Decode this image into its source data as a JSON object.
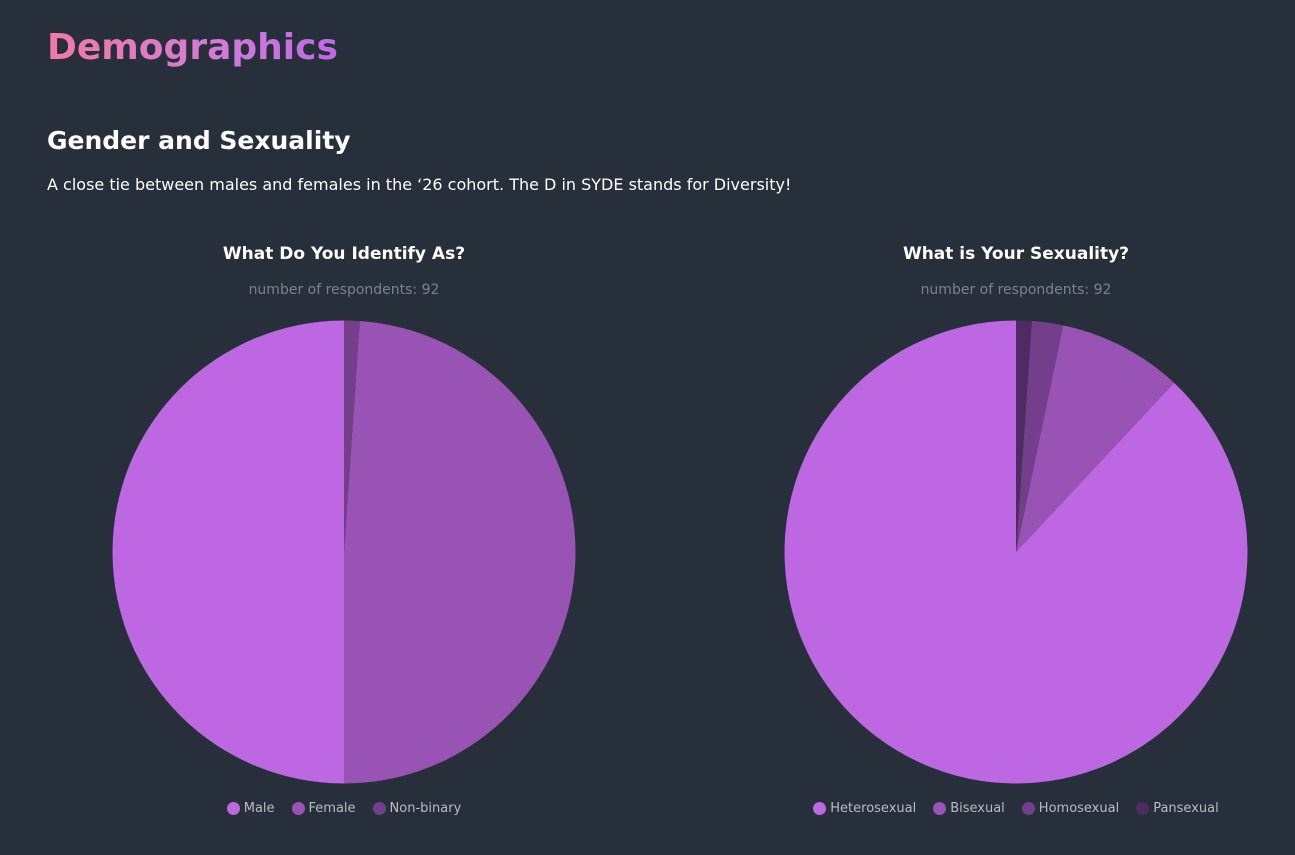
{
  "page": {
    "title": "Demographics"
  },
  "section": {
    "heading": "Gender and Sexuality",
    "description": "A close tie between males and females in the ‘26 cohort. The D in SYDE stands for Diversity!"
  },
  "colors": {
    "background": "#262f3a",
    "title_gradient": [
      "#f27aa6",
      "#bd6ae6"
    ]
  },
  "chart_data": [
    {
      "type": "pie",
      "title": "What Do You Identify As?",
      "subtitle": "number of respondents: 92",
      "legend_position": "bottom",
      "slices": [
        {
          "label": "Male",
          "value": 46,
          "color": "#be67e2"
        },
        {
          "label": "Female",
          "value": 45,
          "color": "#9853b4"
        },
        {
          "label": "Non-binary",
          "value": 1,
          "color": "#733f8b"
        }
      ]
    },
    {
      "type": "pie",
      "title": "What is Your Sexuality?",
      "subtitle": "number of respondents: 92",
      "legend_position": "bottom",
      "slices": [
        {
          "label": "Heterosexual",
          "value": 81,
          "color": "#be67e2"
        },
        {
          "label": "Bisexual",
          "value": 8,
          "color": "#9853b4"
        },
        {
          "label": "Homosexual",
          "value": 2,
          "color": "#733f8b"
        },
        {
          "label": "Pansexual",
          "value": 1,
          "color": "#4e2b62"
        }
      ]
    }
  ]
}
